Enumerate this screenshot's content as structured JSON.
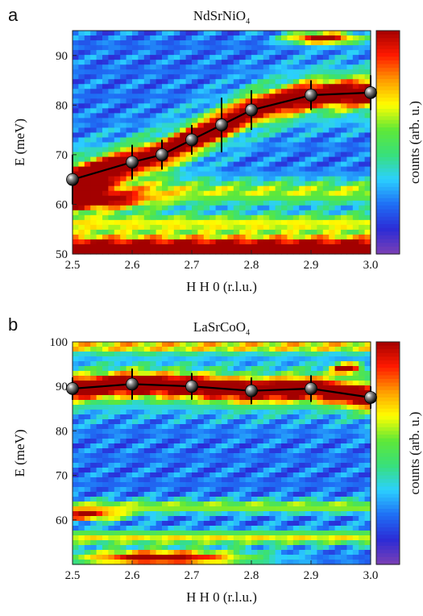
{
  "colorscale": [
    "#7b3fb5",
    "#2b2bd6",
    "#1f6ff5",
    "#2bd0ff",
    "#38e07a",
    "#5ee838",
    "#ffff00",
    "#ff9a00",
    "#ff1a00",
    "#a30000"
  ],
  "chart_data": [
    {
      "type": "heatmap",
      "panel_label": "a",
      "title_main": "NdSrNiO",
      "title_sub": "4",
      "xlabel": "H H 0 (r.l.u.)",
      "ylabel": "E (meV)",
      "colorbar_label": "counts (arb. u.)",
      "xlim": [
        2.5,
        3.0
      ],
      "ylim": [
        50,
        95
      ],
      "xticks": [
        2.5,
        2.6,
        2.7,
        2.8,
        2.9,
        3.0
      ],
      "xtick_labels": [
        "2.5",
        "2.6",
        "2.7",
        "2.8",
        "2.9",
        "3.0"
      ],
      "yticks": [
        50,
        60,
        70,
        80,
        90
      ],
      "ytick_labels": [
        "50",
        "60",
        "70",
        "80",
        "90"
      ],
      "series": [
        {
          "x": [
            2.5,
            2.6,
            2.65,
            2.7,
            2.75,
            2.8,
            2.9,
            3.0
          ],
          "y": [
            65,
            68.5,
            70,
            73,
            76,
            79,
            82,
            82.5
          ],
          "err": [
            5,
            3.5,
            3,
            3,
            5.5,
            4,
            3,
            3.5
          ]
        }
      ],
      "intensity_bands": [
        {
          "y": 50.8,
          "w": 1.2,
          "a": 1.0
        },
        {
          "y": 52.5,
          "w": 1.5,
          "a": 0.55
        },
        {
          "y": 56,
          "w": 2.2,
          "a": 0.45
        },
        {
          "y": 60.5,
          "w": 1.8,
          "a": 0.75,
          "x": 2.5,
          "xw": 0.12
        },
        {
          "y": 62.5,
          "w": 2.5,
          "a": 0.4
        },
        {
          "y": 93.5,
          "w": 1.2,
          "a": 0.9,
          "x": 2.92,
          "xw": 0.06
        }
      ]
    },
    {
      "type": "heatmap",
      "panel_label": "b",
      "title_main": "LaSrCoO",
      "title_sub": "4",
      "xlabel": "H H 0 (r.l.u.)",
      "ylabel": "E (meV)",
      "colorbar_label": "counts (arb. u.)",
      "xlim": [
        2.5,
        3.0
      ],
      "ylim": [
        50,
        100
      ],
      "xticks": [
        2.5,
        2.6,
        2.7,
        2.8,
        2.9,
        3.0
      ],
      "xtick_labels": [
        "2.5",
        "2.6",
        "2.7",
        "2.8",
        "2.9",
        "3.0"
      ],
      "yticks": [
        60,
        70,
        80,
        90,
        100
      ],
      "ytick_labels": [
        "60",
        "70",
        "80",
        "90",
        "100"
      ],
      "series": [
        {
          "x": [
            2.5,
            2.6,
            2.7,
            2.8,
            2.9,
            3.0
          ],
          "y": [
            89.5,
            90.5,
            90,
            89,
            89.5,
            87.5
          ],
          "err": [
            2.5,
            3.5,
            3,
            3,
            3,
            2.5
          ]
        }
      ],
      "intensity_bands": [
        {
          "y": 51.5,
          "w": 1.8,
          "a": 0.85,
          "x": 2.65,
          "xw": 0.15
        },
        {
          "y": 56,
          "w": 1.6,
          "a": 0.45
        },
        {
          "y": 61,
          "w": 1.3,
          "a": 0.7,
          "x": 2.52,
          "xw": 0.07
        },
        {
          "y": 63,
          "w": 1.5,
          "a": 0.4
        },
        {
          "y": 99,
          "w": 1.5,
          "a": 0.5
        },
        {
          "y": 94,
          "w": 1.2,
          "a": 0.9,
          "x": 2.96,
          "xw": 0.025
        }
      ]
    }
  ]
}
